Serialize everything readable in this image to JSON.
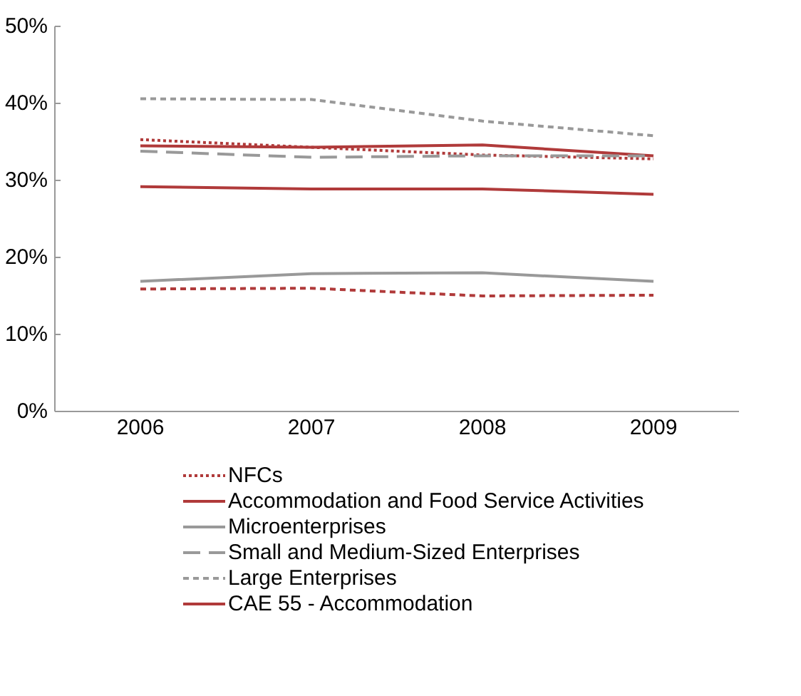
{
  "chart_data": {
    "type": "line",
    "categories": [
      "2006",
      "2007",
      "2008",
      "2009"
    ],
    "ylim": [
      0,
      50
    ],
    "yticks": [
      {
        "value": 0,
        "label": "0%"
      },
      {
        "value": 10,
        "label": "10%"
      },
      {
        "value": 20,
        "label": "20%"
      },
      {
        "value": 30,
        "label": "30%"
      },
      {
        "value": 40,
        "label": "40%"
      },
      {
        "value": 50,
        "label": "50%"
      }
    ],
    "grid": false,
    "legend": "bottom",
    "marker": "none",
    "series": [
      {
        "name": "NFCs",
        "color": "#b03a3a",
        "line_style": "dotted",
        "values": [
          35.3,
          34.3,
          33.3,
          32.8
        ]
      },
      {
        "name": "Accommodation and Food Service Activities",
        "color": "#b03a3a",
        "line_style": "solid",
        "values": [
          34.5,
          34.3,
          34.6,
          33.2
        ]
      },
      {
        "name": "Microenterprises",
        "color": "#999999",
        "line_style": "solid",
        "values": [
          16.9,
          17.9,
          18.0,
          16.9
        ]
      },
      {
        "name": "Small and Medium-Sized Enterprises",
        "color": "#999999",
        "line_style": "longdash",
        "values": [
          33.8,
          33.0,
          33.2,
          33.2
        ]
      },
      {
        "name": "Large Enterprises",
        "color": "#999999",
        "line_style": "dashed",
        "values": [
          40.6,
          40.5,
          37.7,
          35.8
        ]
      },
      {
        "name": "CAE 55 - Accommodation",
        "color": "#b03a3a",
        "line_style": "solid",
        "values": [
          29.2,
          28.9,
          28.9,
          28.2
        ]
      },
      {
        "color": "#b03a3a",
        "line_style": "dashed",
        "values": [
          15.9,
          16.0,
          15.0,
          15.1
        ]
      }
    ]
  }
}
